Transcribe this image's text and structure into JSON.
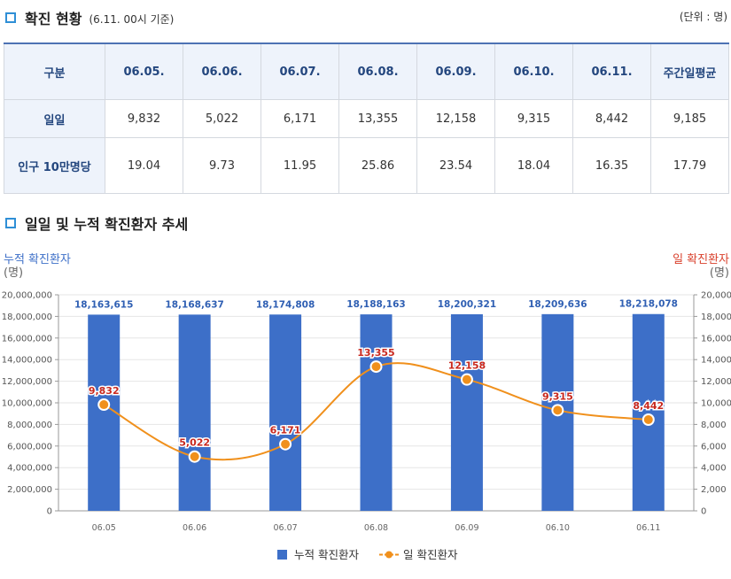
{
  "section1": {
    "title": "확진 현황",
    "subtitle": "(6.11. 00시 기준)",
    "unit": "(단위 : 명)"
  },
  "table": {
    "headers": [
      "구분",
      "06.05.",
      "06.06.",
      "06.07.",
      "06.08.",
      "06.09.",
      "06.10.",
      "06.11.",
      "주간일평균"
    ],
    "rows": [
      {
        "label": "일일",
        "values": [
          "9,832",
          "5,022",
          "6,171",
          "13,355",
          "12,158",
          "9,315",
          "8,442",
          "9,185"
        ]
      },
      {
        "label": "인구 10만명당",
        "values": [
          "19.04",
          "9.73",
          "11.95",
          "25.86",
          "23.54",
          "18.04",
          "16.35",
          "17.79"
        ]
      }
    ]
  },
  "section2": {
    "title": "일일 및 누적 확진환자 추세"
  },
  "chart_data": {
    "type": "bar+line",
    "title": "일일 및 누적 확진환자 추세",
    "categories": [
      "06.05",
      "06.06",
      "06.07",
      "06.08",
      "06.09",
      "06.10",
      "06.11"
    ],
    "series": [
      {
        "name": "누적 확진환자",
        "type": "bar",
        "axis": "left",
        "values": [
          18163615,
          18168637,
          18174808,
          18188163,
          18200321,
          18209636,
          18218078
        ],
        "labels": [
          "18,163,615",
          "18,168,637",
          "18,174,808",
          "18,188,163",
          "18,200,321",
          "18,209,636",
          "18,218,078"
        ]
      },
      {
        "name": "일 확진환자",
        "type": "line",
        "axis": "right",
        "values": [
          9832,
          5022,
          6171,
          13355,
          12158,
          9315,
          8442
        ],
        "labels": [
          "9,832",
          "5,022",
          "6,171",
          "13,355",
          "12,158",
          "9,315",
          "8,442"
        ]
      }
    ],
    "left_axis": {
      "label": "누적 확진환자",
      "unit": "(명)",
      "ylim": [
        0,
        20000000
      ],
      "ticks": [
        "0",
        "2,000,000",
        "4,000,000",
        "6,000,000",
        "8,000,000",
        "10,000,000",
        "12,000,000",
        "14,000,000",
        "16,000,000",
        "18,000,000",
        "20,000,000"
      ]
    },
    "right_axis": {
      "label": "일 확진환자",
      "unit": "(명)",
      "ylim": [
        0,
        20000
      ],
      "ticks": [
        "0",
        "2,000",
        "4,000",
        "6,000",
        "8,000",
        "10,000",
        "12,000",
        "14,000",
        "16,000",
        "18,000",
        "20,000"
      ]
    },
    "legend": {
      "position": "bottom-center",
      "items": [
        "누적 확진환자",
        "일 확진환자"
      ]
    },
    "colors": {
      "bar": "#3d6fc8",
      "line": "#f0901c",
      "bar_label": "#2f5fb3",
      "line_label": "#c8281e",
      "left_axis_label": "#3d6fc8",
      "right_axis_label": "#d9402c"
    }
  }
}
